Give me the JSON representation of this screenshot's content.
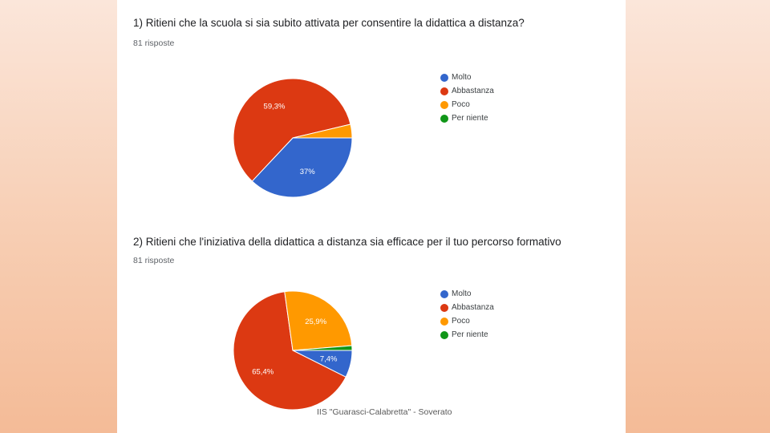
{
  "footer": "IIS \"Guarasci-Calabretta\" - Soverato",
  "chart_data": [
    {
      "type": "pie",
      "title": "1) Ritieni che la scuola si sia subito attivata per consentire la didattica a distanza?",
      "subtitle": "81 risposte",
      "categories": [
        "Molto",
        "Abbastanza",
        "Poco",
        "Per niente"
      ],
      "values": [
        37,
        59.3,
        3.7,
        0
      ],
      "labels": [
        "37%",
        "59,3%",
        "",
        ""
      ],
      "colors": [
        "#3366cc",
        "#dc3912",
        "#ff9900",
        "#109618"
      ],
      "legend": "right"
    },
    {
      "type": "pie",
      "title": "2) Ritieni che l'iniziativa della didattica a distanza sia efficace per il tuo percorso formativo",
      "subtitle": "81 risposte",
      "categories": [
        "Molto",
        "Abbastanza",
        "Poco",
        "Per niente"
      ],
      "values": [
        7.4,
        65.4,
        25.9,
        1.3
      ],
      "labels": [
        "7,4%",
        "65,4%",
        "25,9%",
        ""
      ],
      "colors": [
        "#3366cc",
        "#dc3912",
        "#ff9900",
        "#109618"
      ],
      "legend": "right"
    }
  ]
}
